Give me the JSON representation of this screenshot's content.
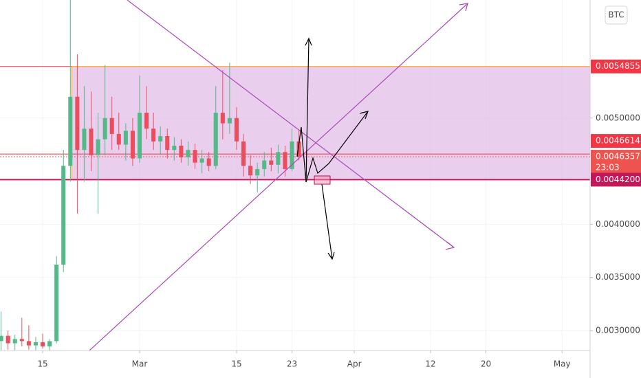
{
  "chart_data": {
    "type": "candlestick",
    "symbol_badge": "BTC",
    "x": [
      40,
      41,
      42,
      43,
      44,
      45,
      46,
      47,
      48,
      49,
      50,
      51,
      52,
      53,
      54,
      55,
      56,
      57,
      58,
      59,
      60,
      61,
      62,
      63,
      64,
      65,
      66,
      67,
      68,
      69,
      70,
      71,
      72,
      73,
      74,
      75,
      76,
      77,
      78,
      79,
      80,
      81,
      82,
      83
    ],
    "open": [
      0.0029,
      0.00295,
      0.00288,
      0.00292,
      0.0029,
      0.00286,
      0.00289,
      0.00285,
      0.0029,
      0.00362,
      0.00455,
      0.0052,
      0.0047,
      0.0049,
      0.00465,
      0.0048,
      0.005,
      0.00485,
      0.00475,
      0.00488,
      0.00462,
      0.00505,
      0.0049,
      0.00478,
      0.00483,
      0.0047,
      0.00474,
      0.00463,
      0.0047,
      0.00458,
      0.00462,
      0.00455,
      0.00505,
      0.00495,
      0.005,
      0.00478,
      0.00455,
      0.00446,
      0.00452,
      0.0046,
      0.00456,
      0.00468,
      0.00452,
      0.00478
    ],
    "high": [
      0.00318,
      0.003,
      0.00296,
      0.00312,
      0.00305,
      0.00294,
      0.00297,
      0.00292,
      0.0037,
      0.0047,
      0.0062,
      0.0056,
      0.0053,
      0.00525,
      0.00505,
      0.0055,
      0.0052,
      0.00505,
      0.00495,
      0.005,
      0.0054,
      0.0053,
      0.00505,
      0.00492,
      0.0049,
      0.00482,
      0.0048,
      0.00478,
      0.00476,
      0.0047,
      0.00468,
      0.0053,
      0.00545,
      0.00552,
      0.0051,
      0.00485,
      0.00465,
      0.00458,
      0.00468,
      0.00472,
      0.00475,
      0.00474,
      0.0049,
      0.00488
    ],
    "low": [
      0.0028,
      0.00282,
      0.0028,
      0.00285,
      0.00282,
      0.0028,
      0.00283,
      0.0028,
      0.00288,
      0.00355,
      0.0044,
      0.0041,
      0.0044,
      0.0045,
      0.0041,
      0.00465,
      0.0047,
      0.0047,
      0.0046,
      0.00455,
      0.00458,
      0.0048,
      0.0047,
      0.00465,
      0.00462,
      0.0046,
      0.00458,
      0.00455,
      0.00452,
      0.00448,
      0.0045,
      0.00452,
      0.0048,
      0.00485,
      0.0047,
      0.00445,
      0.00438,
      0.0043,
      0.00445,
      0.0045,
      0.00448,
      0.00445,
      0.0045,
      0.0046
    ],
    "close": [
      0.00295,
      0.00288,
      0.00292,
      0.0029,
      0.00286,
      0.00289,
      0.00285,
      0.0029,
      0.00362,
      0.00455,
      0.0052,
      0.0047,
      0.0049,
      0.00465,
      0.0048,
      0.005,
      0.00485,
      0.00475,
      0.00488,
      0.00462,
      0.00505,
      0.0049,
      0.00478,
      0.00483,
      0.0047,
      0.00474,
      0.00463,
      0.0047,
      0.00458,
      0.00462,
      0.00455,
      0.00505,
      0.00495,
      0.005,
      0.00478,
      0.00455,
      0.00446,
      0.00452,
      0.0046,
      0.00456,
      0.00468,
      0.00452,
      0.00478,
      0.0046357
    ],
    "up_color": "#53b987",
    "down_color": "#eb4d5c",
    "xlim": [
      39.84,
      125.05
    ],
    "xticks": [
      {
        "value": 46,
        "label": "15"
      },
      {
        "value": 60,
        "label": "Mar"
      },
      {
        "value": 74,
        "label": "15"
      },
      {
        "value": 82,
        "label": "23"
      },
      {
        "value": 91,
        "label": "Apr"
      },
      {
        "value": 102,
        "label": "12"
      },
      {
        "value": 110,
        "label": "20"
      },
      {
        "value": 121,
        "label": "May"
      }
    ],
    "ylim": [
      0.002812,
      0.006111
    ],
    "yticks": [
      {
        "value": 0.003,
        "label": "0.0030000"
      },
      {
        "value": 0.0035,
        "label": "0.0035000"
      },
      {
        "value": 0.004,
        "label": "0.0040000"
      },
      {
        "value": 0.005,
        "label": "0.0050000"
      }
    ],
    "zone": {
      "top": 0.0054855,
      "bottom": 0.00442,
      "color": "#e1bee7"
    },
    "price_labels": [
      {
        "value": 0.0054855,
        "label": "0.0054855",
        "color": "#f23645"
      },
      {
        "value": 0.0046614,
        "label": "0.0046614",
        "color": "#f23645"
      },
      {
        "value": 0.0046357,
        "label": "0.0046357",
        "color": "#ef5350",
        "countdown": "23:03"
      },
      {
        "value": 0.00442,
        "label": "0.0044200",
        "color": "#c2185b"
      }
    ]
  }
}
